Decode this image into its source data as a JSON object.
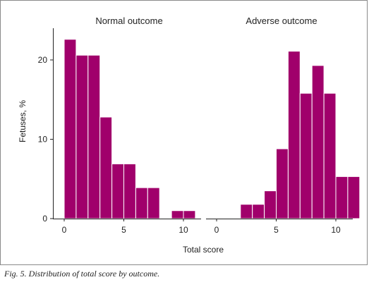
{
  "caption": "Fig. 5. Distribution of total score by outcome.",
  "chart_data": {
    "type": "bar",
    "xlabel": "Total score",
    "ylabel": "Fetuses, %",
    "ylim": [
      0,
      24
    ],
    "yticks": [
      0,
      10,
      20
    ],
    "bar_color": "#a0006b",
    "grid": false,
    "panels": [
      {
        "title": "Normal outcome",
        "xlim": [
          -1,
          11
        ],
        "xticks": [
          0,
          5,
          10
        ],
        "bins": [
          {
            "x0": 0,
            "x1": 1,
            "value": 22.6
          },
          {
            "x0": 1,
            "x1": 2,
            "value": 20.6
          },
          {
            "x0": 2,
            "x1": 3,
            "value": 20.6
          },
          {
            "x0": 3,
            "x1": 4,
            "value": 12.8
          },
          {
            "x0": 4,
            "x1": 5,
            "value": 6.9
          },
          {
            "x0": 5,
            "x1": 6,
            "value": 6.9
          },
          {
            "x0": 6,
            "x1": 7,
            "value": 3.9
          },
          {
            "x0": 7,
            "x1": 8,
            "value": 3.9
          },
          {
            "x0": 8,
            "x1": 9,
            "value": 0
          },
          {
            "x0": 9,
            "x1": 10,
            "value": 1.0
          },
          {
            "x0": 10,
            "x1": 11,
            "value": 1.0
          }
        ]
      },
      {
        "title": "Adverse outcome",
        "xlim": [
          -1,
          11
        ],
        "xticks": [
          0,
          5,
          10
        ],
        "bins": [
          {
            "x0": 2,
            "x1": 3,
            "value": 1.8
          },
          {
            "x0": 3,
            "x1": 4,
            "value": 1.8
          },
          {
            "x0": 4,
            "x1": 5,
            "value": 3.5
          },
          {
            "x0": 5,
            "x1": 6,
            "value": 8.8
          },
          {
            "x0": 6,
            "x1": 7,
            "value": 21.1
          },
          {
            "x0": 7,
            "x1": 8,
            "value": 15.8
          },
          {
            "x0": 8,
            "x1": 9,
            "value": 19.3
          },
          {
            "x0": 9,
            "x1": 10,
            "value": 15.8
          },
          {
            "x0": 10,
            "x1": 11,
            "value": 5.3
          },
          {
            "x0": 11,
            "x1": 12,
            "value": 5.3
          }
        ]
      }
    ]
  }
}
